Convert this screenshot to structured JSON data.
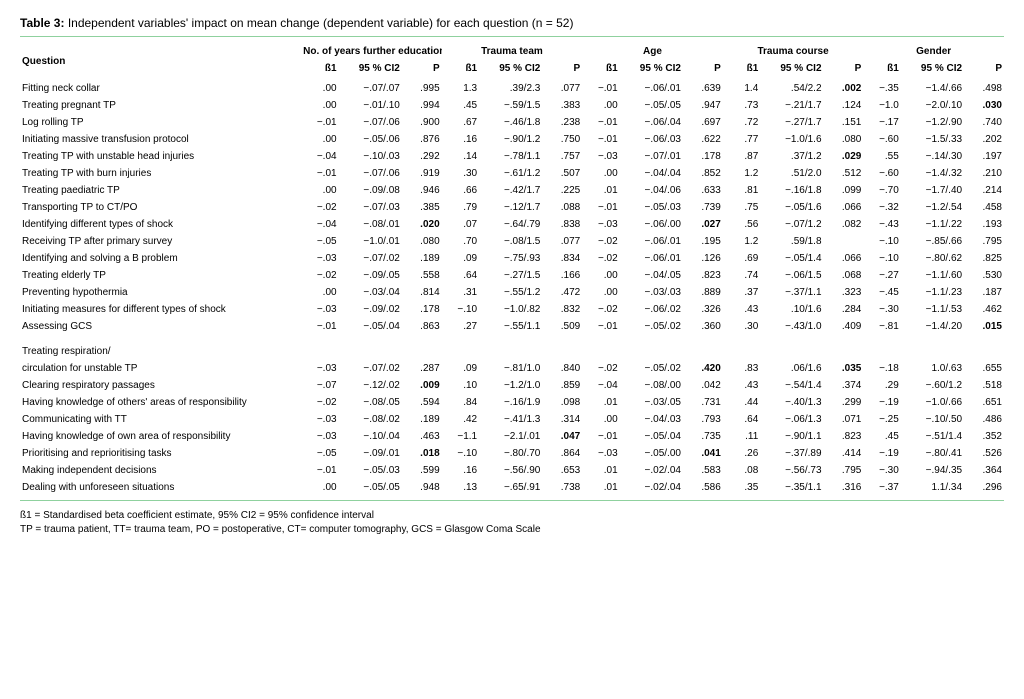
{
  "title_label": "Table 3:",
  "title_text": "Independent variables' impact on mean change (dependent variable) for each question (n = 52)",
  "header": {
    "question": "Question",
    "groups": [
      "No. of years further education",
      "Trauma team",
      "Age",
      "Trauma course",
      "Gender"
    ],
    "sub": [
      "ß1",
      "95 % CI2",
      "P"
    ]
  },
  "spacer_after_index": 14,
  "rows": [
    {
      "q": "Fitting neck collar",
      "v": [
        ".00",
        "−.07/.07",
        ".995",
        "1.3",
        ".39/2.3",
        ".077",
        "−.01",
        "−.06/.01",
        ".639",
        "1.4",
        ".54/2.2",
        ".002",
        "−.35",
        "−1.4/.66",
        ".498"
      ],
      "bold": [
        11
      ]
    },
    {
      "q": "Treating pregnant TP",
      "v": [
        ".00",
        "−.01/.10",
        ".994",
        ".45",
        "−.59/1.5",
        ".383",
        ".00",
        "−.05/.05",
        ".947",
        ".73",
        "−.21/1.7",
        ".124",
        "−1.0",
        "−2.0/.10",
        ".030"
      ],
      "bold": [
        14
      ]
    },
    {
      "q": "Log rolling TP",
      "v": [
        "−.01",
        "−.07/.06",
        ".900",
        ".67",
        "−.46/1.8",
        ".238",
        "−.01",
        "−.06/.04",
        ".697",
        ".72",
        "−.27/1.7",
        ".151",
        "−.17",
        "−1.2/.90",
        ".740"
      ],
      "bold": []
    },
    {
      "q": "Initiating massive transfusion protocol",
      "v": [
        ".00",
        "−.05/.06",
        ".876",
        ".16",
        "−.90/1.2",
        ".750",
        "−.01",
        "−.06/.03",
        ".622",
        ".77",
        "−1.0/1.6",
        ".080",
        "−.60",
        "−1.5/.33",
        ".202"
      ],
      "bold": []
    },
    {
      "q": "Treating TP with unstable head injuries",
      "v": [
        "−.04",
        "−.10/.03",
        ".292",
        ".14",
        "−.78/1.1",
        ".757",
        "−.03",
        "−.07/.01",
        ".178",
        ".87",
        ".37/1.2",
        ".029",
        ".55",
        "−.14/.30",
        ".197"
      ],
      "bold": [
        11
      ]
    },
    {
      "q": "Treating TP with burn injuries",
      "v": [
        "−.01",
        "−.07/.06",
        ".919",
        ".30",
        "−.61/1.2",
        ".507",
        ".00",
        "−.04/.04",
        ".852",
        "1.2",
        ".51/2.0",
        ".512",
        "−.60",
        "−1.4/.32",
        ".210"
      ],
      "bold": []
    },
    {
      "q": "Treating paediatric TP",
      "v": [
        ".00",
        "−.09/.08",
        ".946",
        ".66",
        "−.42/1.7",
        ".225",
        ".01",
        "−.04/.06",
        ".633",
        ".81",
        "−.16/1.8",
        ".099",
        "−.70",
        "−1.7/.40",
        ".214"
      ],
      "bold": []
    },
    {
      "q": "Transporting TP to CT/PO",
      "v": [
        "−.02",
        "−.07/.03",
        ".385",
        ".79",
        "−.12/1.7",
        ".088",
        "−.01",
        "−.05/.03",
        ".739",
        ".75",
        "−.05/1.6",
        ".066",
        "−.32",
        "−1.2/.54",
        ".458"
      ],
      "bold": []
    },
    {
      "q": "Identifying different types of shock",
      "v": [
        "−.04",
        "−.08/.01",
        ".020",
        ".07",
        "−.64/.79",
        ".838",
        "−.03",
        "−.06/.00",
        ".027",
        ".56",
        "−.07/1.2",
        ".082",
        "−.43",
        "−1.1/.22",
        ".193"
      ],
      "bold": [
        2,
        8
      ]
    },
    {
      "q": "Receiving TP after primary survey",
      "v": [
        "−.05",
        "−1.0/.01",
        ".080",
        ".70",
        "−.08/1.5",
        ".077",
        "−.02",
        "−.06/.01",
        ".195",
        "1.2",
        ".59/1.8",
        "",
        "−.10",
        "−.85/.66",
        ".795"
      ],
      "bold": []
    },
    {
      "q": "Identifying and solving a B problem",
      "v": [
        "−.03",
        "−.07/.02",
        ".189",
        ".09",
        "−.75/.93",
        ".834",
        "−.02",
        "−.06/.01",
        ".126",
        ".69",
        "−.05/1.4",
        ".066",
        "−.10",
        "−.80/.62",
        ".825"
      ],
      "bold": []
    },
    {
      "q": "Treating elderly TP",
      "v": [
        "−.02",
        "−.09/.05",
        ".558",
        ".64",
        "−.27/1.5",
        ".166",
        ".00",
        "−.04/.05",
        ".823",
        ".74",
        "−.06/1.5",
        ".068",
        "−.27",
        "−1.1/.60",
        ".530"
      ],
      "bold": []
    },
    {
      "q": "Preventing hypothermia",
      "v": [
        ".00",
        "−.03/.04",
        ".814",
        ".31",
        "−.55/1.2",
        ".472",
        ".00",
        "−.03/.03",
        ".889",
        ".37",
        "−.37/1.1",
        ".323",
        "−.45",
        "−1.1/.23",
        ".187"
      ],
      "bold": []
    },
    {
      "q": "Initiating measures for different types of shock",
      "v": [
        "−.03",
        "−.09/.02",
        ".178",
        "−.10",
        "−1.0/.82",
        ".832",
        "−.02",
        "−.06/.02",
        ".326",
        ".43",
        ".10/1.6",
        ".284",
        "−.30",
        "−1.1/.53",
        ".462"
      ],
      "bold": []
    },
    {
      "q": "Assessing GCS",
      "v": [
        "−.01",
        "−.05/.04",
        ".863",
        ".27",
        "−.55/1.1",
        ".509",
        "−.01",
        "−.05/.02",
        ".360",
        ".30",
        "−.43/1.0",
        ".409",
        "−.81",
        "−1.4/.20",
        ".015"
      ],
      "bold": [
        14
      ]
    },
    {
      "q": "Treating respiration/",
      "v": [
        "",
        "",
        "",
        "",
        "",
        "",
        "",
        "",
        "",
        "",
        "",
        "",
        "",
        "",
        ""
      ],
      "bold": []
    },
    {
      "q": "circulation for unstable TP",
      "v": [
        "−.03",
        "−.07/.02",
        ".287",
        ".09",
        "−.81/1.0",
        ".840",
        "−.02",
        "−.05/.02",
        ".420",
        ".83",
        ".06/1.6",
        ".035",
        "−.18",
        "1.0/.63",
        ".655"
      ],
      "bold": [
        8,
        11
      ]
    },
    {
      "q": "Clearing respiratory passages",
      "v": [
        "−.07",
        "−.12/.02",
        ".009",
        ".10",
        "−1.2/1.0",
        ".859",
        "−.04",
        "−.08/.00",
        ".042",
        ".43",
        "−.54/1.4",
        ".374",
        ".29",
        "−.60/1.2",
        ".518"
      ],
      "bold": [
        2
      ]
    },
    {
      "q": "Having knowledge of others' areas of responsibility",
      "v": [
        "−.02",
        "−.08/.05",
        ".594",
        ".84",
        "−.16/1.9",
        ".098",
        ".01",
        "−.03/.05",
        ".731",
        ".44",
        "−.40/1.3",
        ".299",
        "−.19",
        "−1.0/.66",
        ".651"
      ],
      "bold": []
    },
    {
      "q": "Communicating with TT",
      "v": [
        "−.03",
        "−.08/.02",
        ".189",
        ".42",
        "−.41/1.3",
        ".314",
        ".00",
        "−.04/.03",
        ".793",
        ".64",
        "−.06/1.3",
        ".071",
        "−.25",
        "−.10/.50",
        ".486"
      ],
      "bold": []
    },
    {
      "q": "Having knowledge of own area of responsibility",
      "v": [
        "−.03",
        "−.10/.04",
        ".463",
        "−1.1",
        "−2.1/.01",
        ".047",
        "−.01",
        "−.05/.04",
        ".735",
        ".11",
        "−.90/1.1",
        ".823",
        ".45",
        "−.51/1.4",
        ".352"
      ],
      "bold": [
        5
      ]
    },
    {
      "q": "Prioritising and reprioritising tasks",
      "v": [
        "−.05",
        "−.09/.01",
        ".018",
        "−.10",
        "−.80/.70",
        ".864",
        "−.03",
        "−.05/.00",
        ".041",
        ".26",
        "−.37/.89",
        ".414",
        "−.19",
        "−.80/.41",
        ".526"
      ],
      "bold": [
        2,
        8
      ]
    },
    {
      "q": "Making independent decisions",
      "v": [
        "−.01",
        "−.05/.03",
        ".599",
        ".16",
        "−.56/.90",
        ".653",
        ".01",
        "−.02/.04",
        ".583",
        ".08",
        "−.56/.73",
        ".795",
        "−.30",
        "−.94/.35",
        ".364"
      ],
      "bold": []
    },
    {
      "q": "Dealing with unforeseen situations",
      "v": [
        ".00",
        "−.05/.05",
        ".948",
        ".13",
        "−.65/.91",
        ".738",
        ".01",
        "−.02/.04",
        ".586",
        ".35",
        "−.35/1.1",
        ".316",
        "−.37",
        "1.1/.34",
        ".296"
      ],
      "bold": []
    }
  ],
  "footnotes": [
    "ß1 = Standardised beta coefficient estimate, 95% CI2 = 95% confidence interval",
    "TP = trauma patient, TT= trauma team, PO = postoperative, CT= computer tomography, GCS = Glasgow Coma Scale"
  ]
}
